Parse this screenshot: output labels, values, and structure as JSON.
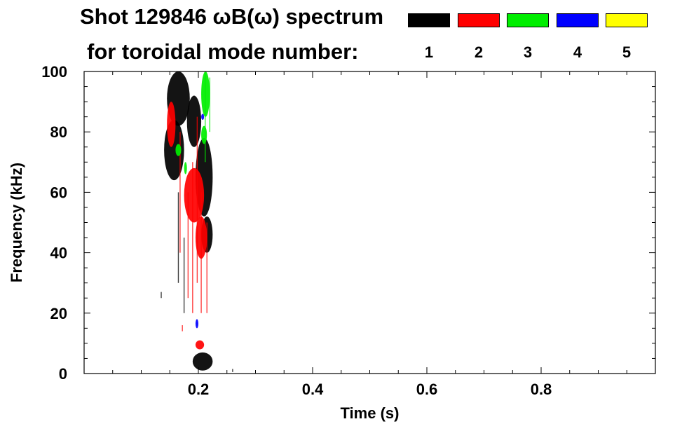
{
  "header": {
    "title_line1": "Shot 129846 ωB(ω) spectrum",
    "title_line2": "for toroidal mode number:"
  },
  "legend": {
    "modes": [
      {
        "label": "1",
        "color": "#000000"
      },
      {
        "label": "2",
        "color": "#ff0000"
      },
      {
        "label": "3",
        "color": "#00ee00"
      },
      {
        "label": "4",
        "color": "#0000ff"
      },
      {
        "label": "5",
        "color": "#ffff00"
      }
    ]
  },
  "chart_data": {
    "type": "heatmap",
    "title": "Shot 129846 ωB(ω) spectrum",
    "xlabel": "Time (s)",
    "ylabel": "Frequency (kHz)",
    "xlim": [
      0.0,
      1.0
    ],
    "ylim": [
      0,
      100
    ],
    "x_ticks": [
      {
        "value": 0.2,
        "label": "0.2"
      },
      {
        "value": 0.4,
        "label": "0.4"
      },
      {
        "value": 0.6,
        "label": "0.6"
      },
      {
        "value": 0.8,
        "label": "0.8"
      }
    ],
    "x_minor_step": 0.05,
    "y_ticks": [
      {
        "value": 0,
        "label": "0"
      },
      {
        "value": 20,
        "label": "20"
      },
      {
        "value": 40,
        "label": "40"
      },
      {
        "value": 60,
        "label": "60"
      },
      {
        "value": 80,
        "label": "80"
      },
      {
        "value": 100,
        "label": "100"
      }
    ],
    "y_minor_step": 5,
    "grid": false,
    "series": [
      {
        "name": "1",
        "color": "#000000",
        "regions": [
          {
            "t": [
              0.14,
              0.175
            ],
            "f": [
              64,
              84
            ]
          },
          {
            "t": [
              0.145,
              0.185
            ],
            "f": [
              82,
              100
            ]
          },
          {
            "t": [
              0.18,
              0.205
            ],
            "f": [
              75,
              92
            ]
          },
          {
            "t": [
              0.195,
              0.225
            ],
            "f": [
              52,
              78
            ]
          },
          {
            "t": [
              0.205,
              0.225
            ],
            "f": [
              40,
              52
            ]
          },
          {
            "t": [
              0.19,
              0.225
            ],
            "f": [
              1,
              7
            ]
          }
        ],
        "streaks": [
          {
            "t": 0.165,
            "f": [
              30,
              60
            ]
          },
          {
            "t": 0.175,
            "f": [
              20,
              45
            ]
          },
          {
            "t": 0.135,
            "f": [
              25,
              27
            ]
          },
          {
            "t": 0.26,
            "f": [
              0.5,
              1.5
            ]
          }
        ]
      },
      {
        "name": "2",
        "color": "#ff0000",
        "regions": [
          {
            "t": [
              0.175,
              0.21
            ],
            "f": [
              50,
              68
            ]
          },
          {
            "t": [
              0.195,
              0.215
            ],
            "f": [
              38,
              52
            ]
          },
          {
            "t": [
              0.145,
              0.16
            ],
            "f": [
              75,
              90
            ]
          },
          {
            "t": [
              0.195,
              0.21
            ],
            "f": [
              8,
              11
            ]
          }
        ],
        "streaks": [
          {
            "t": 0.168,
            "f": [
              40,
              80
            ]
          },
          {
            "t": 0.182,
            "f": [
              25,
              60
            ]
          },
          {
            "t": 0.19,
            "f": [
              20,
              70
            ]
          },
          {
            "t": 0.198,
            "f": [
              30,
              85
            ]
          },
          {
            "t": 0.205,
            "f": [
              20,
              60
            ]
          },
          {
            "t": 0.215,
            "f": [
              20,
              50
            ]
          },
          {
            "t": 0.172,
            "f": [
              14,
              16
            ]
          }
        ]
      },
      {
        "name": "3",
        "color": "#00ee00",
        "regions": [
          {
            "t": [
              0.205,
              0.22
            ],
            "f": [
              85,
              100
            ]
          },
          {
            "t": [
              0.205,
              0.215
            ],
            "f": [
              76,
              82
            ]
          },
          {
            "t": [
              0.16,
              0.17
            ],
            "f": [
              72,
              76
            ]
          },
          {
            "t": [
              0.175,
              0.18
            ],
            "f": [
              66,
              70
            ]
          }
        ],
        "streaks": [
          {
            "t": 0.212,
            "f": [
              70,
              100
            ]
          },
          {
            "t": 0.22,
            "f": [
              80,
              98
            ]
          }
        ]
      },
      {
        "name": "4",
        "color": "#0000ff",
        "regions": [
          {
            "t": [
              0.195,
              0.2
            ],
            "f": [
              15,
              18
            ]
          },
          {
            "t": [
              0.205,
              0.21
            ],
            "f": [
              84,
              86
            ]
          }
        ],
        "streaks": []
      },
      {
        "name": "5",
        "color": "#ffff00",
        "regions": [],
        "streaks": []
      }
    ]
  }
}
